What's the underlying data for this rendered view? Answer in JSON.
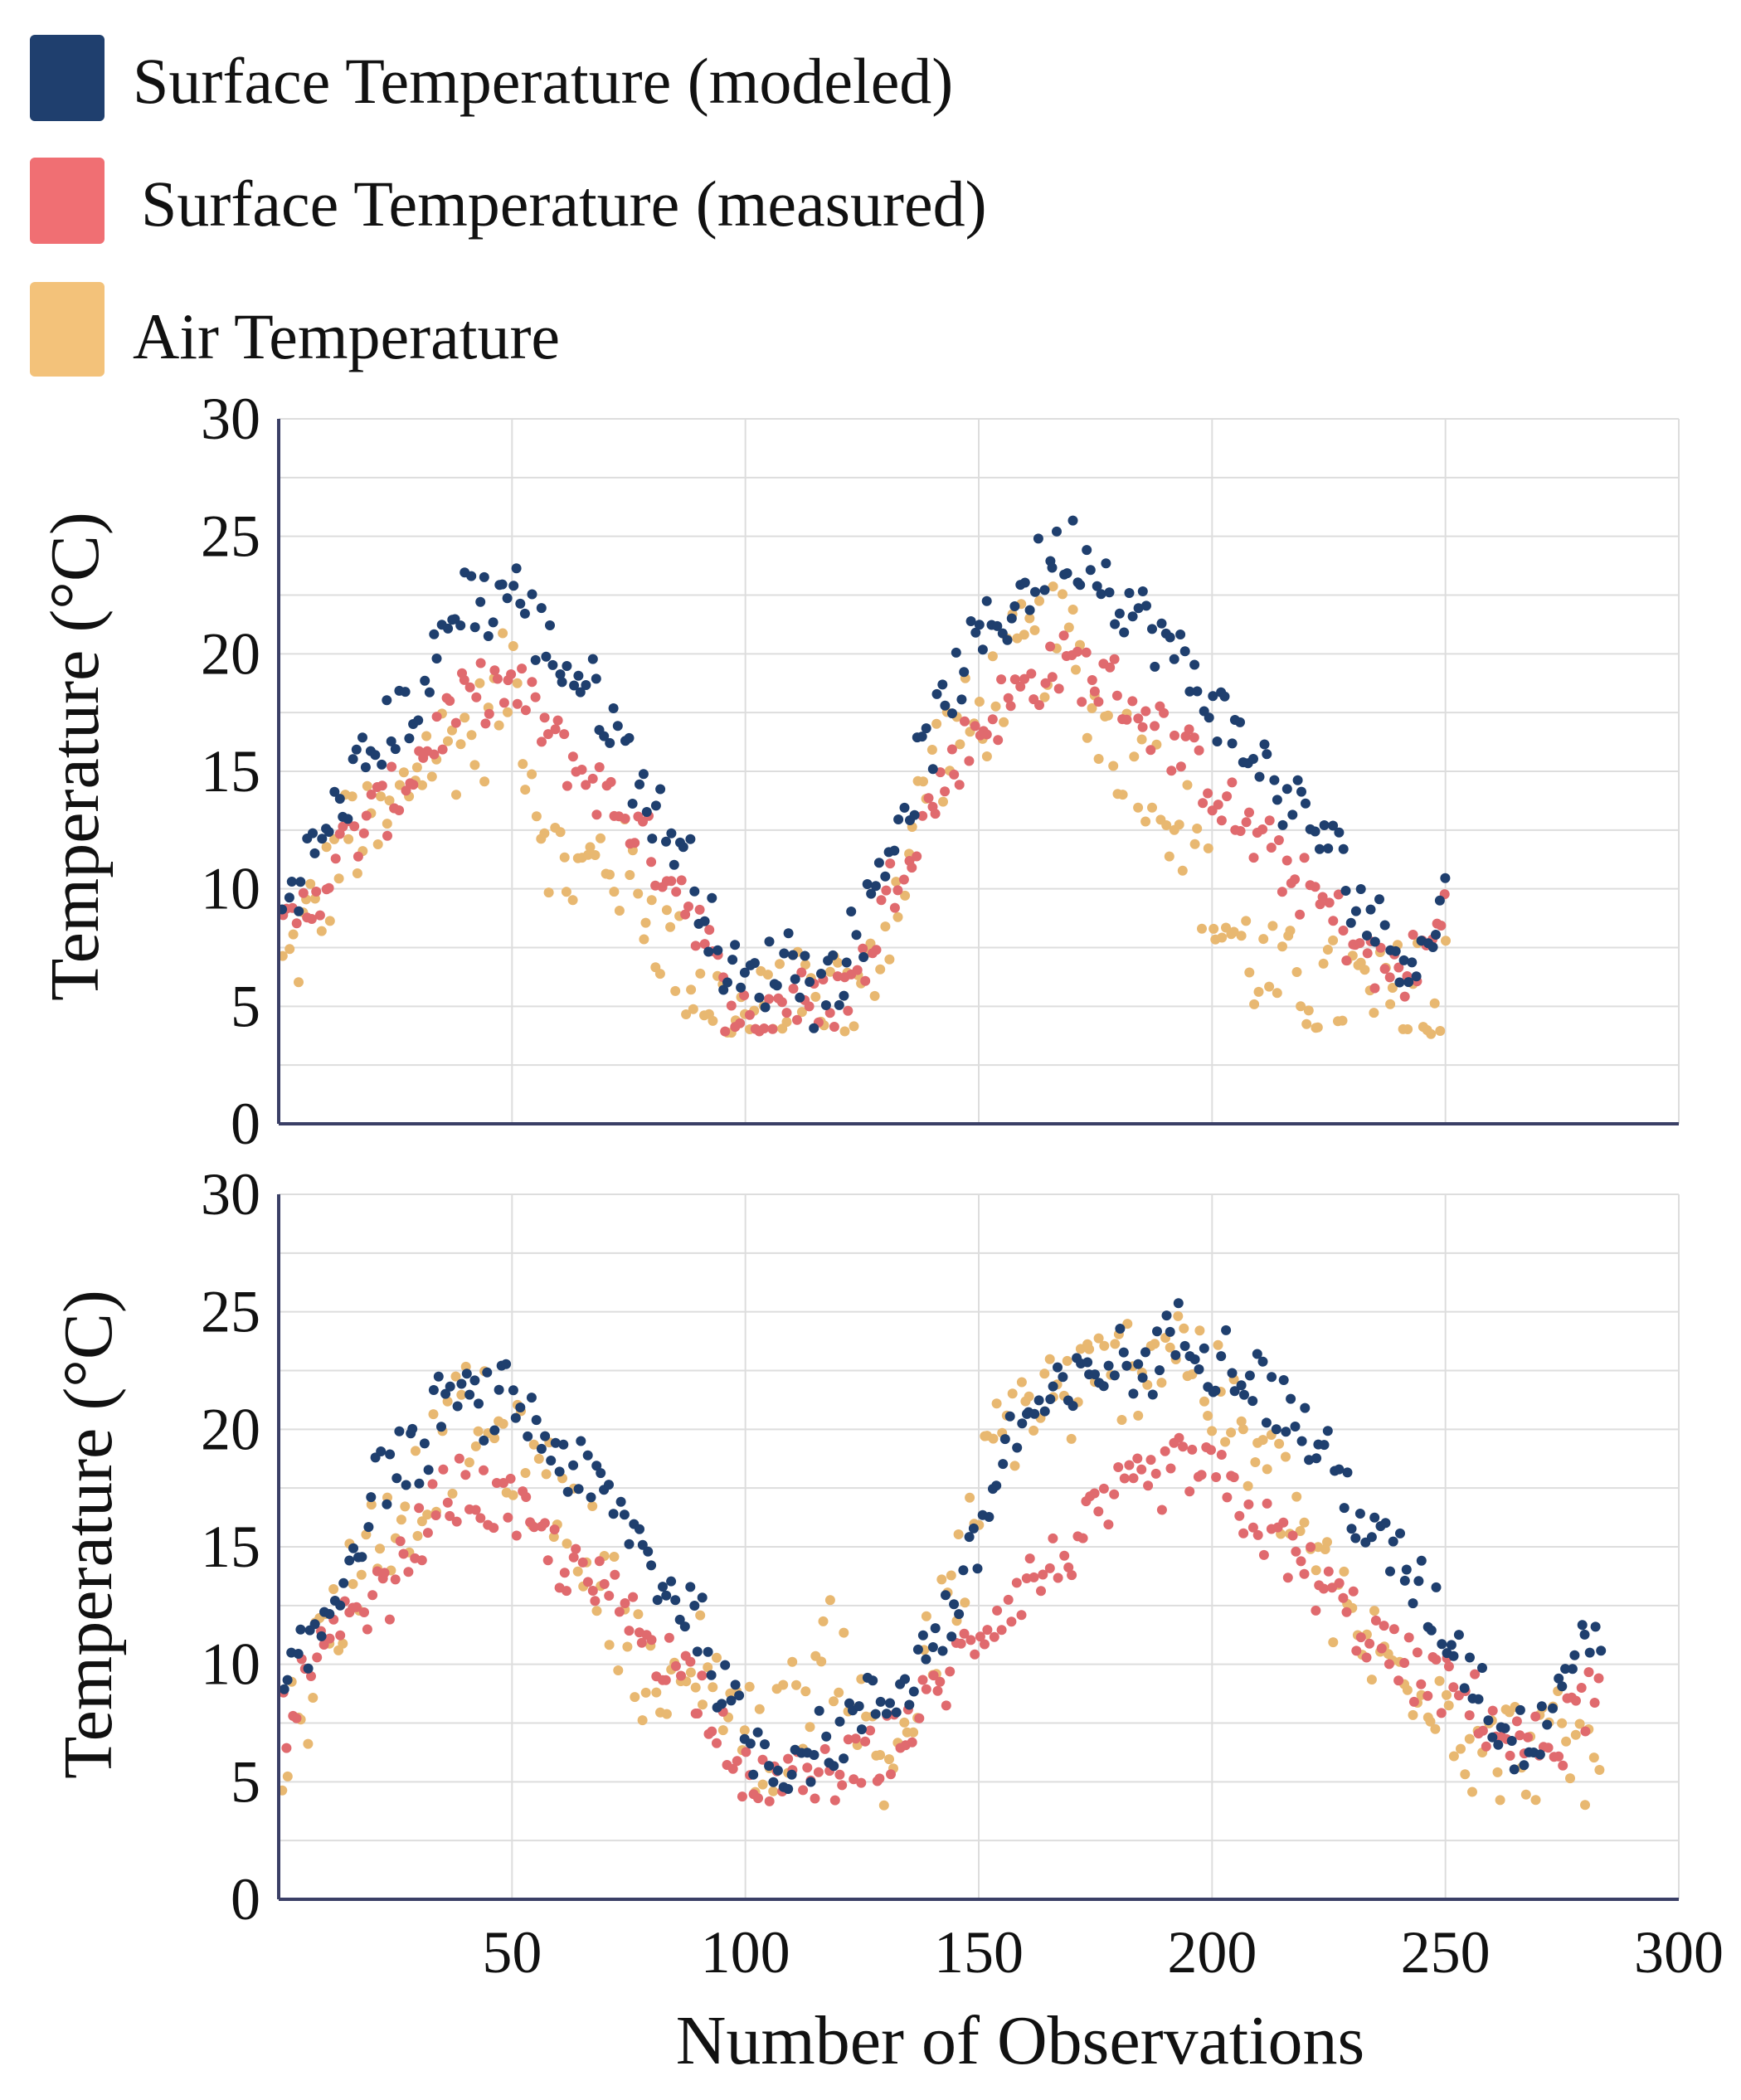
{
  "legend": {
    "items": [
      {
        "label": "Surface Temperature (modeled)",
        "color": "#1f3f6e"
      },
      {
        "label": "Surface Temperature (measured)",
        "color": "#f06f73"
      },
      {
        "label": "Air Temperature",
        "color": "#f3c27a"
      }
    ]
  },
  "colors": {
    "modeled": "#1f3f6e",
    "measured": "#e06a6e",
    "air": "#e8b871",
    "grid": "#dddddd",
    "axis": "#3a3f66"
  },
  "chart_data": [
    {
      "type": "scatter",
      "panel": "top",
      "ylabel": "Temperature (°C)",
      "xlabel": "",
      "xlim": [
        0,
        300
      ],
      "ylim": [
        0,
        30
      ],
      "x_ticks": [
        50,
        100,
        150,
        200,
        250,
        300
      ],
      "y_ticks": [
        0,
        5,
        10,
        15,
        20,
        25,
        30
      ],
      "x_tick_labels_visible": false,
      "grid": true,
      "x_max_observation": 250,
      "series": [
        {
          "name": "Surface Temperature (modeled)",
          "key": "modeled",
          "x": [
            0,
            5,
            10,
            15,
            20,
            25,
            30,
            35,
            40,
            45,
            50,
            55,
            60,
            65,
            70,
            75,
            80,
            85,
            90,
            95,
            100,
            105,
            110,
            115,
            120,
            125,
            130,
            135,
            140,
            145,
            150,
            155,
            160,
            165,
            170,
            175,
            180,
            185,
            190,
            195,
            200,
            205,
            210,
            215,
            220,
            225,
            230,
            235,
            240,
            245,
            250
          ],
          "values": [
            9.5,
            10.8,
            12.3,
            14.2,
            15.8,
            17.2,
            18.0,
            20.5,
            22.8,
            22.0,
            23.2,
            21.0,
            19.8,
            18.8,
            17.8,
            15.5,
            13.5,
            12.2,
            10.0,
            7.0,
            5.8,
            6.5,
            7.5,
            5.5,
            6.5,
            8.5,
            11.5,
            14.0,
            16.5,
            19.0,
            20.5,
            21.5,
            22.8,
            24.0,
            24.5,
            23.8,
            22.5,
            21.5,
            20.5,
            19.0,
            18.0,
            16.5,
            15.5,
            14.0,
            13.0,
            12.0,
            10.0,
            8.5,
            7.5,
            7.0,
            9.5
          ]
        },
        {
          "name": "Surface Temperature (measured)",
          "key": "measured",
          "x": [
            0,
            5,
            10,
            15,
            20,
            25,
            30,
            35,
            40,
            45,
            50,
            55,
            60,
            65,
            70,
            75,
            80,
            85,
            90,
            95,
            100,
            105,
            110,
            115,
            120,
            125,
            130,
            135,
            140,
            145,
            150,
            155,
            160,
            165,
            170,
            175,
            180,
            185,
            190,
            195,
            200,
            205,
            210,
            215,
            220,
            225,
            230,
            235,
            240,
            245,
            250
          ],
          "values": [
            7.5,
            9.0,
            10.5,
            12.0,
            13.0,
            14.0,
            15.5,
            17.0,
            18.0,
            18.5,
            18.5,
            17.5,
            16.0,
            15.0,
            14.0,
            13.0,
            11.5,
            10.5,
            8.5,
            5.5,
            4.5,
            4.8,
            5.5,
            4.8,
            5.5,
            6.5,
            9.5,
            12.0,
            13.5,
            15.5,
            16.8,
            17.8,
            18.5,
            19.5,
            19.5,
            19.0,
            18.5,
            17.5,
            16.5,
            15.5,
            14.5,
            13.0,
            12.0,
            11.0,
            10.0,
            9.0,
            8.0,
            6.5,
            6.5,
            7.0,
            9.0
          ]
        },
        {
          "name": "Air Temperature",
          "key": "air",
          "x": [
            0,
            5,
            10,
            15,
            20,
            25,
            30,
            35,
            40,
            45,
            50,
            55,
            60,
            65,
            70,
            75,
            80,
            85,
            90,
            95,
            100,
            105,
            110,
            115,
            120,
            125,
            130,
            135,
            140,
            145,
            150,
            155,
            160,
            165,
            170,
            175,
            180,
            185,
            190,
            195,
            200,
            205,
            210,
            215,
            220,
            225,
            230,
            235,
            240,
            245,
            250
          ],
          "values": [
            6.0,
            8.0,
            10.0,
            12.5,
            12.0,
            13.0,
            15.5,
            16.0,
            16.5,
            17.0,
            19.5,
            14.0,
            11.0,
            10.5,
            11.5,
            10.5,
            9.0,
            7.0,
            6.0,
            5.0,
            4.3,
            4.5,
            5.0,
            4.8,
            5.0,
            5.0,
            8.5,
            11.5,
            15.5,
            16.5,
            17.0,
            19.0,
            20.0,
            20.5,
            20.5,
            17.5,
            16.0,
            15.5,
            14.0,
            12.5,
            9.0,
            8.0,
            6.5,
            6.0,
            6.0,
            5.5,
            6.0,
            5.0,
            5.5,
            6.5,
            5.5
          ]
        }
      ]
    },
    {
      "type": "scatter",
      "panel": "bottom",
      "ylabel": "Temperature (°C)",
      "xlabel": "Number of Observations",
      "xlim": [
        0,
        300
      ],
      "ylim": [
        0,
        30
      ],
      "x_ticks": [
        50,
        100,
        150,
        200,
        250,
        300
      ],
      "y_ticks": [
        0,
        5,
        10,
        15,
        20,
        25,
        30
      ],
      "x_tick_labels_visible": true,
      "grid": true,
      "x_max_observation": 283,
      "series": [
        {
          "name": "Surface Temperature (modeled)",
          "key": "modeled",
          "x": [
            0,
            5,
            10,
            15,
            20,
            25,
            30,
            35,
            40,
            45,
            50,
            55,
            60,
            65,
            70,
            75,
            80,
            85,
            90,
            95,
            100,
            105,
            110,
            115,
            120,
            125,
            130,
            135,
            140,
            145,
            150,
            155,
            160,
            165,
            170,
            175,
            180,
            185,
            190,
            195,
            200,
            205,
            210,
            215,
            220,
            225,
            230,
            235,
            240,
            245,
            250,
            255,
            260,
            265,
            270,
            275,
            280
          ],
          "values": [
            8.0,
            10.0,
            12.0,
            14.5,
            17.0,
            19.0,
            18.5,
            21.5,
            21.0,
            21.0,
            21.5,
            20.0,
            19.0,
            18.0,
            17.0,
            16.0,
            14.0,
            13.0,
            12.0,
            9.0,
            7.0,
            6.0,
            6.0,
            6.5,
            7.0,
            8.0,
            8.5,
            9.5,
            11.0,
            12.5,
            15.0,
            19.0,
            20.5,
            21.0,
            21.5,
            22.5,
            23.0,
            22.5,
            23.5,
            24.5,
            23.0,
            23.0,
            22.0,
            21.0,
            20.0,
            18.5,
            17.0,
            15.0,
            14.5,
            13.0,
            11.5,
            10.0,
            8.0,
            6.5,
            7.5,
            9.5,
            11.5
          ]
        },
        {
          "name": "Surface Temperature (measured)",
          "key": "measured",
          "x": [
            0,
            5,
            10,
            15,
            20,
            25,
            30,
            35,
            40,
            45,
            50,
            55,
            60,
            65,
            70,
            75,
            80,
            85,
            90,
            95,
            100,
            105,
            110,
            115,
            120,
            125,
            130,
            135,
            140,
            145,
            150,
            155,
            160,
            165,
            170,
            175,
            180,
            185,
            190,
            195,
            200,
            205,
            210,
            215,
            220,
            225,
            230,
            235,
            240,
            245,
            250,
            255,
            260,
            265,
            270,
            275,
            280
          ],
          "values": [
            7.0,
            9.0,
            10.5,
            11.5,
            12.5,
            13.5,
            15.5,
            17.0,
            17.5,
            17.0,
            16.5,
            15.5,
            14.5,
            13.5,
            13.0,
            12.0,
            11.0,
            10.0,
            9.0,
            7.5,
            5.0,
            4.5,
            5.0,
            5.0,
            5.5,
            5.5,
            6.5,
            7.5,
            8.5,
            10.0,
            11.5,
            12.5,
            13.5,
            14.0,
            15.0,
            16.0,
            17.0,
            17.5,
            18.0,
            18.5,
            18.0,
            17.0,
            16.0,
            15.0,
            14.0,
            13.0,
            12.0,
            11.0,
            10.0,
            9.5,
            9.0,
            8.5,
            7.5,
            6.5,
            6.5,
            7.0,
            8.5
          ]
        },
        {
          "name": "Air Temperature",
          "key": "air",
          "x": [
            0,
            5,
            10,
            15,
            20,
            25,
            30,
            35,
            40,
            45,
            50,
            55,
            60,
            65,
            70,
            75,
            80,
            85,
            90,
            95,
            100,
            105,
            110,
            115,
            120,
            125,
            130,
            135,
            140,
            145,
            150,
            155,
            160,
            165,
            170,
            175,
            180,
            185,
            190,
            195,
            200,
            205,
            210,
            215,
            220,
            225,
            230,
            235,
            240,
            245,
            250,
            255,
            260,
            265,
            270,
            275,
            280
          ],
          "values": [
            6.0,
            8.5,
            11.0,
            13.5,
            15.0,
            16.5,
            17.5,
            19.0,
            20.5,
            20.0,
            19.0,
            18.0,
            17.0,
            15.5,
            13.0,
            11.5,
            9.0,
            8.0,
            10.5,
            9.0,
            7.0,
            6.5,
            8.0,
            9.5,
            11.0,
            7.5,
            5.5,
            7.5,
            10.5,
            13.0,
            17.0,
            20.0,
            21.0,
            21.5,
            21.5,
            22.0,
            22.5,
            23.0,
            24.0,
            23.5,
            21.5,
            20.0,
            18.5,
            17.5,
            15.5,
            13.0,
            11.5,
            10.5,
            9.5,
            10.0,
            8.5,
            7.0,
            6.0,
            6.5,
            6.5,
            6.5,
            6.0
          ]
        }
      ]
    }
  ]
}
